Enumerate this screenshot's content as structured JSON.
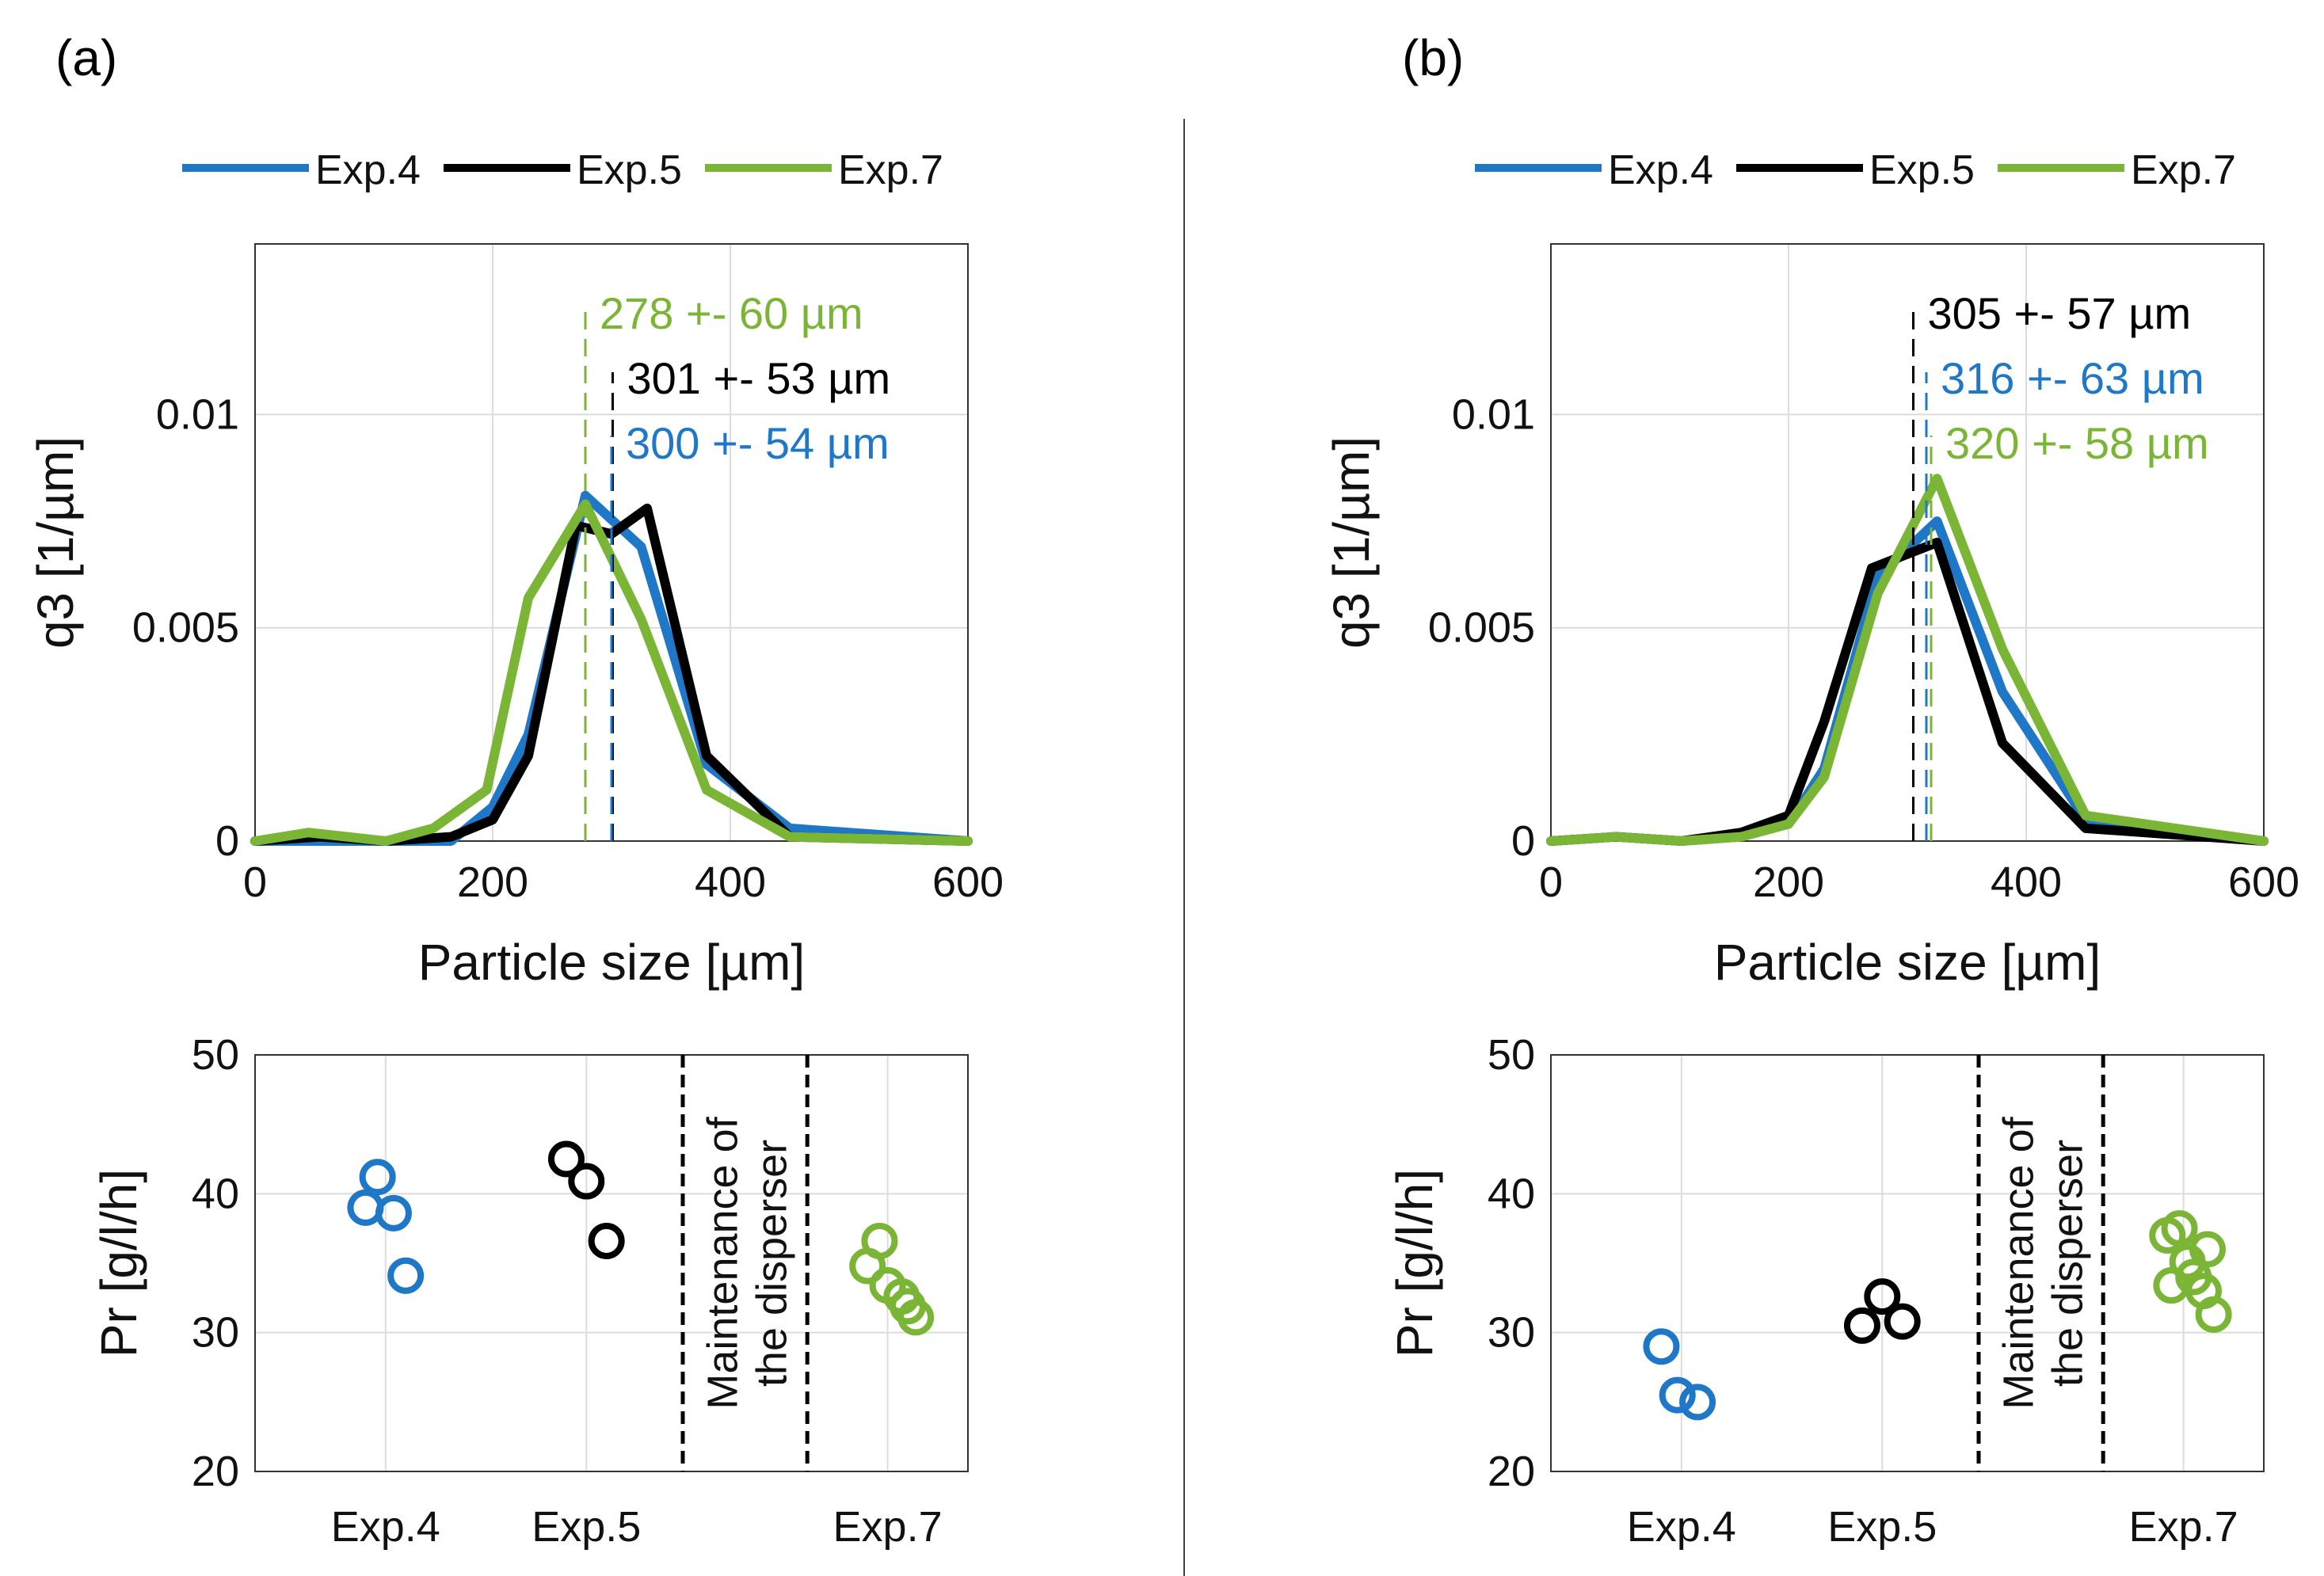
{
  "colors": {
    "exp4": "#1f77c8",
    "exp5": "#000000",
    "exp7": "#7ab536",
    "grid": "#dcdcdc",
    "axis": "#333333"
  },
  "chart_data": [
    {
      "panel": "(a)",
      "type": "line",
      "title": "",
      "xlabel": "Particle size [µm]",
      "ylabel": "q3 [1/µm]",
      "xlim": [
        0,
        600
      ],
      "ylim": [
        0,
        0.014
      ],
      "xticks": [
        "0",
        "200",
        "400",
        "600"
      ],
      "yticks": [
        "0",
        "0.005",
        "0.01"
      ],
      "legend": [
        "Exp.4",
        "Exp.5",
        "Exp.7"
      ],
      "series": [
        {
          "name": "Exp.4",
          "color_key": "exp4",
          "x": [
            0,
            55,
            110,
            165,
            200,
            230,
            278,
            325,
            380,
            450,
            600
          ],
          "y": [
            0,
            0,
            0,
            0,
            0.0008,
            0.0025,
            0.0081,
            0.0069,
            0.0018,
            0.0003,
            0
          ]
        },
        {
          "name": "Exp.5",
          "color_key": "exp5",
          "x": [
            0,
            55,
            110,
            165,
            200,
            230,
            270,
            300,
            330,
            380,
            450,
            600
          ],
          "y": [
            0,
            0.0001,
            0,
            0.0001,
            0.0005,
            0.002,
            0.0074,
            0.0072,
            0.0078,
            0.002,
            0.0001,
            0
          ]
        },
        {
          "name": "Exp.7",
          "color_key": "exp7",
          "x": [
            0,
            45,
            110,
            150,
            195,
            230,
            278,
            325,
            380,
            450,
            600
          ],
          "y": [
            0,
            0.0002,
            0,
            0.0003,
            0.0012,
            0.0057,
            0.0079,
            0.0052,
            0.0012,
            0.0001,
            0
          ]
        }
      ],
      "annotations": [
        {
          "text": "278 +- 60 µm",
          "color_key": "exp7",
          "x": 278
        },
        {
          "text": "301 +- 53 µm",
          "color_key": "exp5",
          "x": 301
        },
        {
          "text": "300 +- 54 µm",
          "color_key": "exp4",
          "x": 300
        }
      ]
    },
    {
      "panel": "(b)",
      "type": "line",
      "title": "",
      "xlabel": "Particle size [µm]",
      "ylabel": "q3 [1/µm]",
      "xlim": [
        0,
        600
      ],
      "ylim": [
        0,
        0.014
      ],
      "xticks": [
        "0",
        "200",
        "400",
        "600"
      ],
      "yticks": [
        "0",
        "0.005",
        "0.01"
      ],
      "legend": [
        "Exp.4",
        "Exp.5",
        "Exp.7"
      ],
      "series": [
        {
          "name": "Exp.4",
          "color_key": "exp4",
          "x": [
            0,
            55,
            110,
            160,
            200,
            230,
            275,
            325,
            380,
            450,
            600
          ],
          "y": [
            0,
            0.0001,
            0,
            0.0001,
            0.0004,
            0.0017,
            0.0062,
            0.0075,
            0.0035,
            0.0005,
            0
          ]
        },
        {
          "name": "Exp.5",
          "color_key": "exp5",
          "x": [
            0,
            55,
            110,
            160,
            200,
            230,
            270,
            325,
            380,
            450,
            600
          ],
          "y": [
            0,
            0.0001,
            0,
            0.0002,
            0.0006,
            0.0028,
            0.0064,
            0.007,
            0.0023,
            0.0003,
            0
          ]
        },
        {
          "name": "Exp.7",
          "color_key": "exp7",
          "x": [
            0,
            55,
            110,
            160,
            200,
            230,
            275,
            325,
            380,
            450,
            600
          ],
          "y": [
            0,
            0.0001,
            0,
            0.0001,
            0.0004,
            0.0015,
            0.0058,
            0.0085,
            0.0045,
            0.0006,
            0
          ]
        }
      ],
      "annotations": [
        {
          "text": "305 +- 57 µm",
          "color_key": "exp5",
          "x": 305
        },
        {
          "text": "316 +- 63 µm",
          "color_key": "exp4",
          "x": 316
        },
        {
          "text": "320 +- 58 µm",
          "color_key": "exp7",
          "x": 320
        }
      ]
    },
    {
      "panel": "(a)",
      "type": "scatter",
      "ylabel": "Pr [g/l/h]",
      "ylim": [
        20,
        50
      ],
      "yticks": [
        "20",
        "30",
        "40",
        "50"
      ],
      "categories": [
        "Exp.4",
        "Exp.5",
        "Exp.7"
      ],
      "category_positions": [
        1,
        2,
        3.5
      ],
      "xlim": [
        0.35,
        3.9
      ],
      "maintenance_label": [
        "Maintenance of",
        "the disperser"
      ],
      "maintenance_bounds": [
        2.48,
        3.1
      ],
      "series": [
        {
          "name": "Exp.4",
          "color_key": "exp4",
          "x": [
            0.9,
            0.96,
            1.04,
            1.1
          ],
          "y": [
            39.0,
            41.2,
            38.6,
            34.1
          ]
        },
        {
          "name": "Exp.5",
          "color_key": "exp5",
          "x": [
            1.9,
            2.0,
            2.1
          ],
          "y": [
            42.5,
            40.9,
            36.6
          ]
        },
        {
          "name": "Exp.7",
          "color_key": "exp7",
          "x": [
            3.4,
            3.46,
            3.5,
            3.57,
            3.6,
            3.64
          ],
          "y": [
            34.8,
            36.6,
            33.4,
            32.6,
            31.9,
            31.1
          ]
        }
      ]
    },
    {
      "panel": "(b)",
      "type": "scatter",
      "ylabel": "Pr [g/l/h]",
      "ylim": [
        20,
        50
      ],
      "yticks": [
        "20",
        "30",
        "40",
        "50"
      ],
      "categories": [
        "Exp.4",
        "Exp.5",
        "Exp.7"
      ],
      "category_positions": [
        1,
        2,
        3.5
      ],
      "xlim": [
        0.35,
        3.9
      ],
      "maintenance_label": [
        "Maintenance of",
        "the disperser"
      ],
      "maintenance_bounds": [
        2.48,
        3.1
      ],
      "series": [
        {
          "name": "Exp.4",
          "color_key": "exp4",
          "x": [
            0.9,
            0.98,
            1.08
          ],
          "y": [
            29.0,
            25.5,
            25.0
          ]
        },
        {
          "name": "Exp.5",
          "color_key": "exp5",
          "x": [
            1.9,
            2.0,
            2.1
          ],
          "y": [
            30.5,
            32.6,
            30.8
          ]
        },
        {
          "name": "Exp.7",
          "color_key": "exp7",
          "x": [
            3.42,
            3.44,
            3.48,
            3.52,
            3.55,
            3.6,
            3.62,
            3.65
          ],
          "y": [
            37.0,
            33.4,
            37.5,
            35.1,
            34.0,
            33.0,
            36.0,
            31.3
          ]
        }
      ]
    }
  ]
}
